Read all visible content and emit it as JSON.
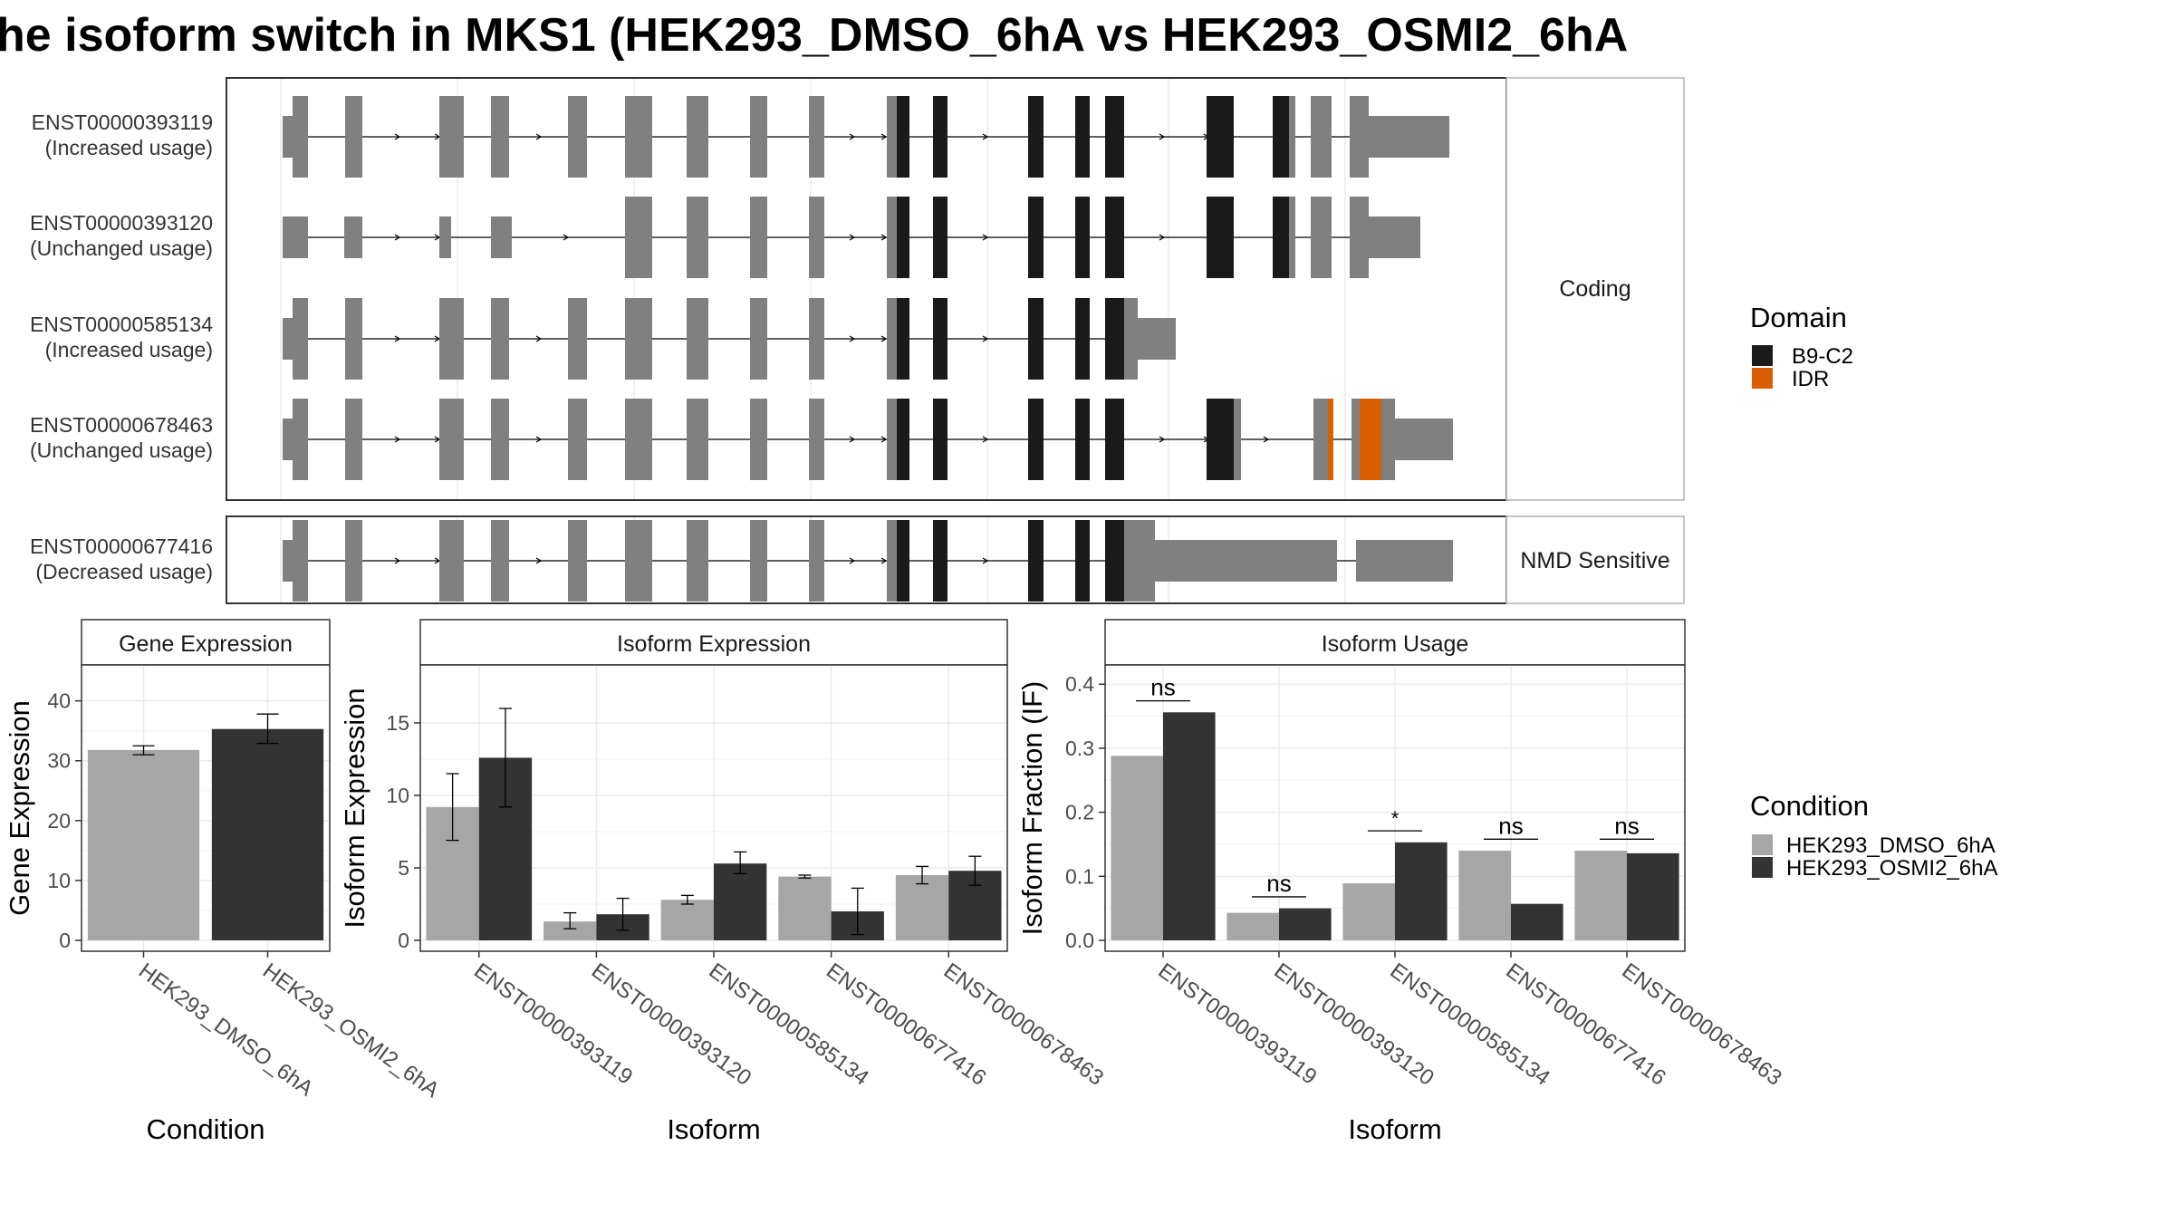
{
  "title": "he isoform switch in MKS1 (HEK293_DMSO_6hA vs HEK293_OSMI2_6hA",
  "colors": {
    "exon": "#808080",
    "b9c2": "#1a1a1a",
    "idr": "#d95f02",
    "dmso": "#a6a6a6",
    "osmi2": "#333333",
    "strip_bg": "#ffffff",
    "grid": "#ebebeb"
  },
  "transcripts": {
    "facets": [
      {
        "label": "Coding",
        "rows": [
          0,
          1,
          2,
          3
        ]
      },
      {
        "label": "NMD Sensitive",
        "rows": [
          4
        ]
      }
    ],
    "rows": [
      {
        "id": "ENST00000393119",
        "usage": "(Increased usage)"
      },
      {
        "id": "ENST00000393120",
        "usage": "(Unchanged usage)"
      },
      {
        "id": "ENST00000585134",
        "usage": "(Increased usage)"
      },
      {
        "id": "ENST00000678463",
        "usage": "(Unchanged usage)"
      },
      {
        "id": "ENST00000677416",
        "usage": "(Decreased usage)"
      }
    ]
  },
  "legends": {
    "domain": {
      "title": "Domain",
      "items": [
        {
          "label": "B9-C2",
          "color": "#1a1a1a"
        },
        {
          "label": "IDR",
          "color": "#d95f02"
        }
      ]
    },
    "condition": {
      "title": "Condition",
      "items": [
        {
          "label": "HEK293_DMSO_6hA",
          "color": "#a6a6a6"
        },
        {
          "label": "HEK293_OSMI2_6hA",
          "color": "#333333"
        }
      ]
    }
  },
  "chart_data": [
    {
      "type": "bar",
      "title": "Gene Expression",
      "xlabel": "Condition",
      "ylabel": "Gene Expression",
      "categories": [
        "HEK293_DMSO_6hA",
        "HEK293_OSMI2_6hA"
      ],
      "values": [
        31.8,
        35.3
      ],
      "error": [
        [
          31.0,
          32.5
        ],
        [
          32.9,
          37.8
        ]
      ],
      "ylim": [
        0,
        46
      ],
      "yticks": [
        0,
        10,
        20,
        30,
        40
      ]
    },
    {
      "type": "bar",
      "title": "Isoform Expression",
      "xlabel": "Isoform",
      "ylabel": "Isoform Expression",
      "categories": [
        "ENST00000393119",
        "ENST00000393120",
        "ENST00000585134",
        "ENST00000677416",
        "ENST00000678463"
      ],
      "series": [
        {
          "name": "HEK293_DMSO_6hA",
          "values": [
            9.2,
            1.3,
            2.8,
            4.4,
            4.5
          ],
          "error": [
            [
              6.9,
              11.5
            ],
            [
              0.8,
              1.9
            ],
            [
              2.5,
              3.1
            ],
            [
              4.3,
              4.5
            ],
            [
              3.9,
              5.1
            ]
          ]
        },
        {
          "name": "HEK293_OSMI2_6hA",
          "values": [
            12.6,
            1.8,
            5.3,
            2.0,
            4.8
          ],
          "error": [
            [
              9.2,
              16.0
            ],
            [
              0.7,
              2.9
            ],
            [
              4.6,
              6.1
            ],
            [
              0.4,
              3.6
            ],
            [
              3.8,
              5.8
            ]
          ]
        }
      ],
      "ylim": [
        0,
        19
      ],
      "yticks": [
        0,
        5,
        10,
        15
      ]
    },
    {
      "type": "bar",
      "title": "Isoform Usage",
      "xlabel": "Isoform",
      "ylabel": "Isoform Fraction (IF)",
      "categories": [
        "ENST00000393119",
        "ENST00000393120",
        "ENST00000585134",
        "ENST00000677416",
        "ENST00000678463"
      ],
      "series": [
        {
          "name": "HEK293_DMSO_6hA",
          "values": [
            0.288,
            0.043,
            0.089,
            0.14,
            0.14
          ]
        },
        {
          "name": "HEK293_OSMI2_6hA",
          "values": [
            0.356,
            0.05,
            0.153,
            0.057,
            0.136
          ]
        }
      ],
      "significance": [
        "ns",
        "ns",
        "*",
        "ns",
        "ns"
      ],
      "ylim": [
        0,
        0.43
      ],
      "yticks": [
        "0.0",
        "0.1",
        "0.2",
        "0.3",
        "0.4"
      ]
    }
  ]
}
